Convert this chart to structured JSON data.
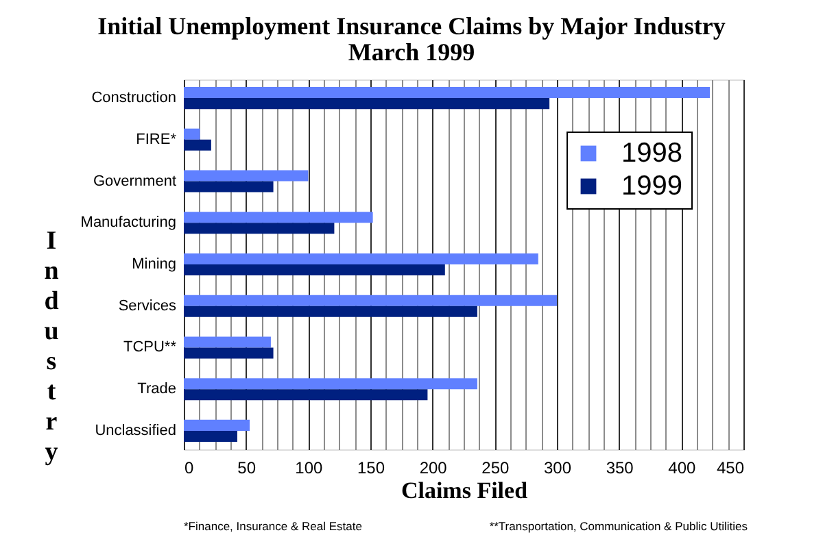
{
  "chart_data": {
    "type": "bar",
    "orientation": "horizontal",
    "title": "Initial Unemployment Insurance Claims by Major Industry",
    "subtitle": "March 1999",
    "xlabel": "Claims Filed",
    "ylabel": "Industry",
    "categories": [
      "Construction",
      "FIRE*",
      "Government",
      "Manufacturing",
      "Mining",
      "Services",
      "TCPU**",
      "Trade",
      "Unclassified"
    ],
    "series": [
      {
        "name": "1998",
        "color": "#6080ff",
        "values": [
          423,
          13,
          100,
          152,
          285,
          300,
          70,
          236,
          53
        ]
      },
      {
        "name": "1999",
        "color": "#002080",
        "values": [
          294,
          22,
          72,
          121,
          210,
          236,
          72,
          196,
          43
        ]
      }
    ],
    "xlim": [
      0,
      450
    ],
    "xticks": [
      0,
      {
        "value": 12.5,
        "label": null
      },
      {
        "value": 25,
        "label": null
      },
      {
        "value": 37.5,
        "label": null
      },
      50,
      {
        "value": 62.5,
        "label": null
      },
      {
        "value": 75,
        "label": null
      },
      {
        "value": 87.5,
        "label": null
      },
      100,
      {
        "value": 112.5,
        "label": null
      },
      {
        "value": 125,
        "label": null
      },
      {
        "value": 137.5,
        "label": null
      },
      150,
      {
        "value": 162.5,
        "label": null
      },
      {
        "value": 175,
        "label": null
      },
      {
        "value": 187.5,
        "label": null
      },
      200,
      {
        "value": 212.5,
        "label": null
      },
      {
        "value": 225,
        "label": null
      },
      {
        "value": 237.5,
        "label": null
      },
      250,
      {
        "value": 262.5,
        "label": null
      },
      {
        "value": 275,
        "label": null
      },
      {
        "value": 287.5,
        "label": null
      },
      300,
      {
        "value": 312.5,
        "label": null
      },
      {
        "value": 325,
        "label": null
      },
      {
        "value": 337.5,
        "label": null
      },
      350,
      {
        "value": 362.5,
        "label": null
      },
      {
        "value": 375,
        "label": null
      },
      {
        "value": 387.5,
        "label": null
      },
      400,
      {
        "value": 412.5,
        "label": null
      },
      {
        "value": 425,
        "label": null
      },
      {
        "value": 437.5,
        "label": null
      },
      450
    ],
    "grid": "x",
    "legend": "top right",
    "annotations": [
      "*Finance, Insurance & Real Estate",
      "**Transportation, Communication & Public Utilities"
    ]
  }
}
